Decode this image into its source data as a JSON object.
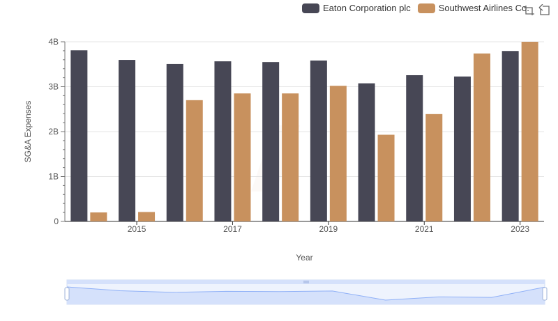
{
  "colors": {
    "eaton": "#474755",
    "southwest": "#c8915e",
    "grid": "#e6e6e6",
    "axis": "#333333",
    "zoom_fill": "#d5e1fb",
    "zoom_line": "#8fb0f7"
  },
  "legend": {
    "items": [
      {
        "label": "Eaton Corporation plc"
      },
      {
        "label": "Southwest Airlines Co."
      }
    ]
  },
  "toolbox": {
    "icons": [
      "zoom-icon",
      "restore-icon"
    ]
  },
  "chart_data": {
    "type": "bar",
    "xlabel": "Year",
    "ylabel": "SG&A Expenses",
    "ylim": [
      0,
      4000000000
    ],
    "y_ticks": [
      "0",
      "1B",
      "2B",
      "3B",
      "4B"
    ],
    "categories": [
      "2014",
      "2015",
      "2016",
      "2017",
      "2018",
      "2019",
      "2020",
      "2021",
      "2022",
      "2023"
    ],
    "x_tick_labels": [
      "2015",
      "2017",
      "2019",
      "2021",
      "2023"
    ],
    "series": [
      {
        "name": "Eaton Corporation plc",
        "values": [
          3810000000,
          3596000000,
          3505000000,
          3565000000,
          3548000000,
          3583000000,
          3075000000,
          3256000000,
          3227000000,
          3795000000
        ]
      },
      {
        "name": "Southwest Airlines Co.",
        "values": [
          200000000,
          210000000,
          2700000000,
          2850000000,
          2850000000,
          3020000000,
          1930000000,
          2390000000,
          3740000000,
          4000000000
        ]
      }
    ],
    "legend_position": "top-right",
    "grid": true,
    "data_zoom": {
      "range": [
        "2014",
        "2023"
      ]
    }
  }
}
